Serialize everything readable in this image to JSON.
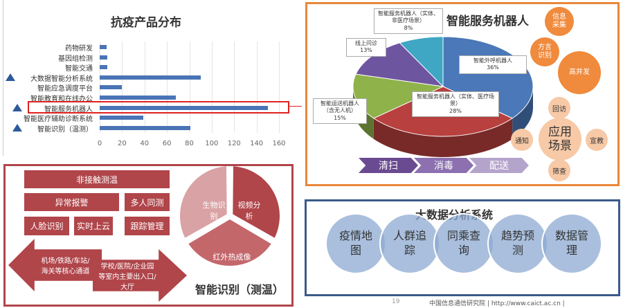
{
  "chart_data": [
    {
      "type": "bar",
      "orientation": "horizontal",
      "title": "抗疫产品分布",
      "categories": [
        "药物研发",
        "基因组检测",
        "智能交通",
        "大数据智能分析系统",
        "智能应急调度平台",
        "智能教育和在线办公",
        "智能服务机器人",
        "智能医疗辅助诊断系统",
        "智能识别（温测）"
      ],
      "values": [
        6,
        7,
        7,
        90,
        20,
        68,
        150,
        39,
        81
      ],
      "xticks": [
        "0",
        "20",
        "40",
        "60",
        "80",
        "100",
        "120",
        "140",
        "160"
      ],
      "xlim": [
        0,
        160
      ],
      "grid": true,
      "bar_color": "#4a74b6",
      "highlighted": "智能服务机器人",
      "marked": [
        "大数据智能分析系统",
        "智能服务机器人",
        "智能识别（温测）"
      ]
    },
    {
      "type": "pie",
      "title": "智能服务机器人",
      "slices": [
        {
          "label": "智能外呼机器人",
          "value": 36,
          "text": "36%",
          "color": "#4a78b8"
        },
        {
          "label": "智能服务机器人（实体、医疗场景）",
          "value": 28,
          "text": "28%",
          "color": "#b8403e"
        },
        {
          "label": "智能运送机器人（含无人机）",
          "value": 15,
          "text": "15%",
          "color": "#8fb24a"
        },
        {
          "label": "线上问诊",
          "value": 13,
          "text": "13%",
          "color": "#6e55a0"
        },
        {
          "label": "智能服务机器人（实体、非医疗场景）",
          "value": 8,
          "text": "8%",
          "color": "#3fa6c4"
        }
      ]
    }
  ],
  "robot": {
    "gears": [
      "信息采集",
      "方言识别",
      "高并发"
    ],
    "scene_center": "应用场景",
    "scenes": [
      "回访",
      "通知",
      "宣教",
      "筛查"
    ],
    "steps": [
      "清扫",
      "消毒",
      "配送"
    ]
  },
  "temp": {
    "title": "智能识别（测温）",
    "boxes": [
      "非接触测温",
      "异常报警",
      "多人同测",
      "人脸识别",
      "实时上云",
      "跟踪管理"
    ],
    "arrow_left": "机场/铁路/车站/海关等核心通道",
    "arrow_right": "学校/医院/企业园等室内主要出入口/大厅",
    "segments": [
      "生物识别",
      "视频分析",
      "红外热成像"
    ]
  },
  "bigdata": {
    "title": "大数据分析系统",
    "items": [
      "疫情地图",
      "人群追踪",
      "同乘查询",
      "趋势预测",
      "数据管理"
    ]
  },
  "footer": {
    "page": "19",
    "org": "中国信息通信研究院",
    "url": "http://www.caict.ac.cn",
    "sep": "|"
  },
  "colors": {
    "orange": "#e8873a",
    "red": "#b0454a",
    "blue": "#3a5a8a"
  }
}
